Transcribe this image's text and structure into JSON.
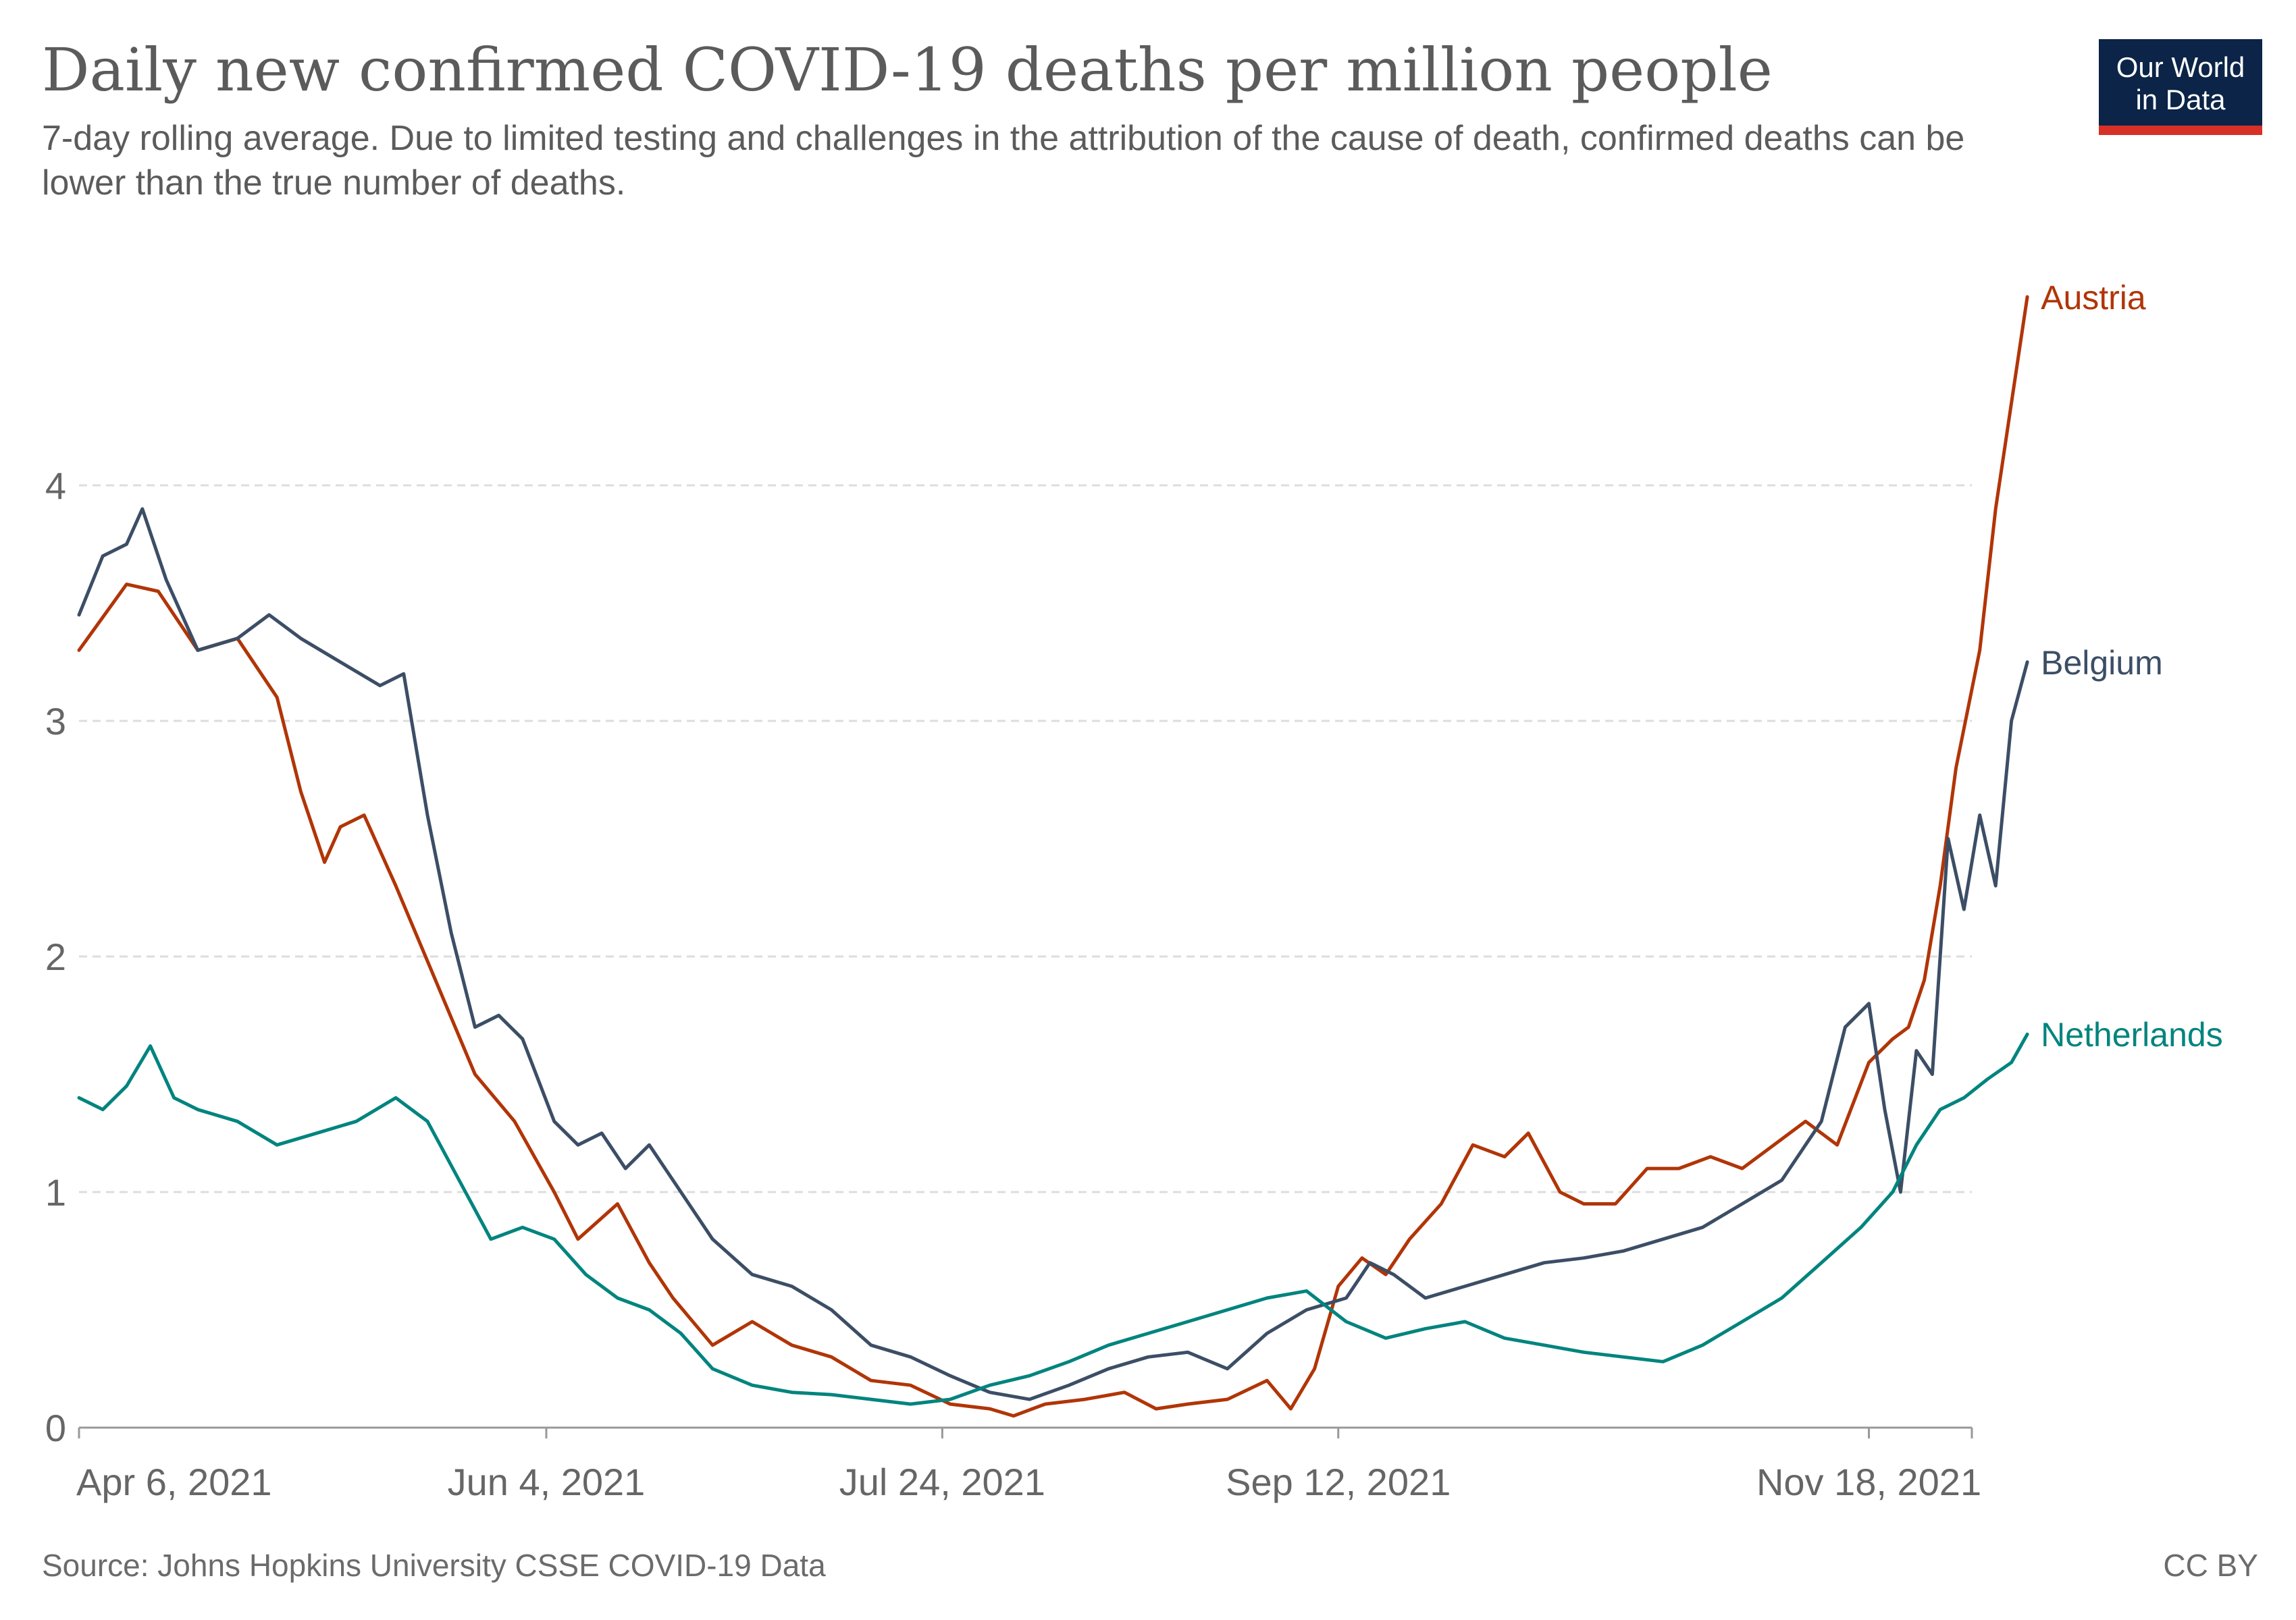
{
  "title": "Daily new confirmed COVID-19 deaths per million people",
  "subtitle": "7-day rolling average. Due to limited testing and challenges in the attribution of the cause of death, confirmed deaths can be lower than the true number of deaths.",
  "logo": {
    "line1": "Our World",
    "line2": "in Data",
    "bg_color": "#0b2447",
    "accent_color": "#d73027"
  },
  "source": "Source: Johns Hopkins University CSSE COVID-19 Data",
  "license": "CC BY",
  "chart_data": {
    "type": "line",
    "x_start": "Apr 6, 2021",
    "x_end": "Dec 1, 2021",
    "x_ticks": [
      "Apr 6, 2021",
      "Jun 4, 2021",
      "Jul 24, 2021",
      "Sep 12, 2021",
      "Nov 18, 2021"
    ],
    "x_tick_days": [
      0,
      59,
      109,
      159,
      226
    ],
    "x_range_days": [
      0,
      239
    ],
    "ylim": [
      0,
      5
    ],
    "y_ticks": [
      0,
      1,
      2,
      3,
      4
    ],
    "grid": true,
    "legend": "line-end labels",
    "series": [
      {
        "name": "Austria",
        "color": "#b13507",
        "points": [
          [
            0,
            3.3
          ],
          [
            6,
            3.58
          ],
          [
            10,
            3.55
          ],
          [
            15,
            3.3
          ],
          [
            20,
            3.35
          ],
          [
            25,
            3.1
          ],
          [
            28,
            2.7
          ],
          [
            31,
            2.4
          ],
          [
            33,
            2.55
          ],
          [
            36,
            2.6
          ],
          [
            40,
            2.3
          ],
          [
            45,
            1.9
          ],
          [
            50,
            1.5
          ],
          [
            55,
            1.3
          ],
          [
            60,
            1.0
          ],
          [
            63,
            0.8
          ],
          [
            68,
            0.95
          ],
          [
            72,
            0.7
          ],
          [
            75,
            0.55
          ],
          [
            80,
            0.35
          ],
          [
            85,
            0.45
          ],
          [
            90,
            0.35
          ],
          [
            95,
            0.3
          ],
          [
            100,
            0.2
          ],
          [
            105,
            0.18
          ],
          [
            110,
            0.1
          ],
          [
            115,
            0.08
          ],
          [
            118,
            0.05
          ],
          [
            122,
            0.1
          ],
          [
            127,
            0.12
          ],
          [
            132,
            0.15
          ],
          [
            136,
            0.08
          ],
          [
            140,
            0.1
          ],
          [
            145,
            0.12
          ],
          [
            150,
            0.2
          ],
          [
            153,
            0.08
          ],
          [
            156,
            0.25
          ],
          [
            159,
            0.6
          ],
          [
            162,
            0.72
          ],
          [
            165,
            0.65
          ],
          [
            168,
            0.8
          ],
          [
            172,
            0.95
          ],
          [
            176,
            1.2
          ],
          [
            180,
            1.15
          ],
          [
            183,
            1.25
          ],
          [
            187,
            1.0
          ],
          [
            190,
            0.95
          ],
          [
            194,
            0.95
          ],
          [
            198,
            1.1
          ],
          [
            202,
            1.1
          ],
          [
            206,
            1.15
          ],
          [
            210,
            1.1
          ],
          [
            214,
            1.2
          ],
          [
            218,
            1.3
          ],
          [
            222,
            1.2
          ],
          [
            226,
            1.55
          ],
          [
            229,
            1.65
          ],
          [
            231,
            1.7
          ],
          [
            233,
            1.9
          ],
          [
            235,
            2.3
          ],
          [
            237,
            2.8
          ],
          [
            240,
            3.3
          ],
          [
            242,
            3.9
          ],
          [
            244,
            4.35
          ],
          [
            246,
            4.8
          ]
        ]
      },
      {
        "name": "Belgium",
        "color": "#3c4e66",
        "points": [
          [
            0,
            3.45
          ],
          [
            3,
            3.7
          ],
          [
            6,
            3.75
          ],
          [
            8,
            3.9
          ],
          [
            11,
            3.6
          ],
          [
            15,
            3.3
          ],
          [
            20,
            3.35
          ],
          [
            24,
            3.45
          ],
          [
            28,
            3.35
          ],
          [
            33,
            3.25
          ],
          [
            38,
            3.15
          ],
          [
            41,
            3.2
          ],
          [
            44,
            2.6
          ],
          [
            47,
            2.1
          ],
          [
            50,
            1.7
          ],
          [
            53,
            1.75
          ],
          [
            56,
            1.65
          ],
          [
            60,
            1.3
          ],
          [
            63,
            1.2
          ],
          [
            66,
            1.25
          ],
          [
            69,
            1.1
          ],
          [
            72,
            1.2
          ],
          [
            75,
            1.05
          ],
          [
            80,
            0.8
          ],
          [
            85,
            0.65
          ],
          [
            90,
            0.6
          ],
          [
            95,
            0.5
          ],
          [
            100,
            0.35
          ],
          [
            105,
            0.3
          ],
          [
            110,
            0.22
          ],
          [
            115,
            0.15
          ],
          [
            120,
            0.12
          ],
          [
            125,
            0.18
          ],
          [
            130,
            0.25
          ],
          [
            135,
            0.3
          ],
          [
            140,
            0.32
          ],
          [
            145,
            0.25
          ],
          [
            150,
            0.4
          ],
          [
            155,
            0.5
          ],
          [
            160,
            0.55
          ],
          [
            163,
            0.7
          ],
          [
            166,
            0.65
          ],
          [
            170,
            0.55
          ],
          [
            175,
            0.6
          ],
          [
            180,
            0.65
          ],
          [
            185,
            0.7
          ],
          [
            190,
            0.72
          ],
          [
            195,
            0.75
          ],
          [
            200,
            0.8
          ],
          [
            205,
            0.85
          ],
          [
            210,
            0.95
          ],
          [
            215,
            1.05
          ],
          [
            220,
            1.3
          ],
          [
            223,
            1.7
          ],
          [
            226,
            1.8
          ],
          [
            228,
            1.35
          ],
          [
            230,
            1.0
          ],
          [
            232,
            1.6
          ],
          [
            234,
            1.5
          ],
          [
            236,
            2.5
          ],
          [
            238,
            2.2
          ],
          [
            240,
            2.6
          ],
          [
            242,
            2.3
          ],
          [
            244,
            3.0
          ],
          [
            246,
            3.25
          ]
        ]
      },
      {
        "name": "Netherlands",
        "color": "#00847e",
        "points": [
          [
            0,
            1.4
          ],
          [
            3,
            1.35
          ],
          [
            6,
            1.45
          ],
          [
            9,
            1.62
          ],
          [
            12,
            1.4
          ],
          [
            15,
            1.35
          ],
          [
            20,
            1.3
          ],
          [
            25,
            1.2
          ],
          [
            30,
            1.25
          ],
          [
            35,
            1.3
          ],
          [
            40,
            1.4
          ],
          [
            44,
            1.3
          ],
          [
            48,
            1.05
          ],
          [
            52,
            0.8
          ],
          [
            56,
            0.85
          ],
          [
            60,
            0.8
          ],
          [
            64,
            0.65
          ],
          [
            68,
            0.55
          ],
          [
            72,
            0.5
          ],
          [
            76,
            0.4
          ],
          [
            80,
            0.25
          ],
          [
            85,
            0.18
          ],
          [
            90,
            0.15
          ],
          [
            95,
            0.14
          ],
          [
            100,
            0.12
          ],
          [
            105,
            0.1
          ],
          [
            110,
            0.12
          ],
          [
            115,
            0.18
          ],
          [
            120,
            0.22
          ],
          [
            125,
            0.28
          ],
          [
            130,
            0.35
          ],
          [
            135,
            0.4
          ],
          [
            140,
            0.45
          ],
          [
            145,
            0.5
          ],
          [
            150,
            0.55
          ],
          [
            155,
            0.58
          ],
          [
            160,
            0.45
          ],
          [
            165,
            0.38
          ],
          [
            170,
            0.42
          ],
          [
            175,
            0.45
          ],
          [
            180,
            0.38
          ],
          [
            185,
            0.35
          ],
          [
            190,
            0.32
          ],
          [
            195,
            0.3
          ],
          [
            200,
            0.28
          ],
          [
            205,
            0.35
          ],
          [
            210,
            0.45
          ],
          [
            215,
            0.55
          ],
          [
            220,
            0.7
          ],
          [
            225,
            0.85
          ],
          [
            229,
            1.0
          ],
          [
            232,
            1.2
          ],
          [
            235,
            1.35
          ],
          [
            238,
            1.4
          ],
          [
            241,
            1.48
          ],
          [
            244,
            1.55
          ],
          [
            246,
            1.67
          ]
        ]
      }
    ]
  }
}
